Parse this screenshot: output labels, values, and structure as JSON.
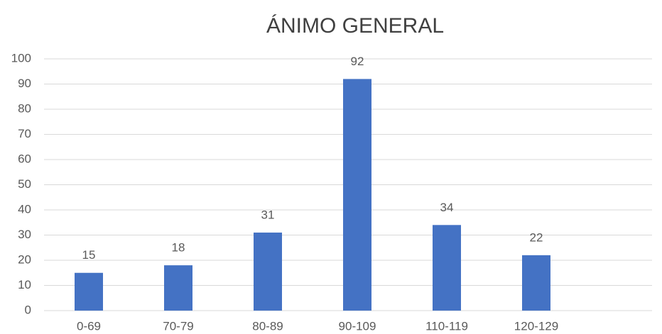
{
  "chart_data": {
    "type": "bar",
    "title": "ÁNIMO GENERAL",
    "categories": [
      "0-69",
      "70-79",
      "80-89",
      "90-109",
      "110-119",
      "120-129"
    ],
    "values": [
      15,
      18,
      31,
      92,
      34,
      22
    ],
    "color": "#4472c4",
    "ylim": [
      0,
      100
    ],
    "yticks": [
      0,
      10,
      20,
      30,
      40,
      50,
      60,
      70,
      80,
      90,
      100
    ],
    "grid": true
  }
}
